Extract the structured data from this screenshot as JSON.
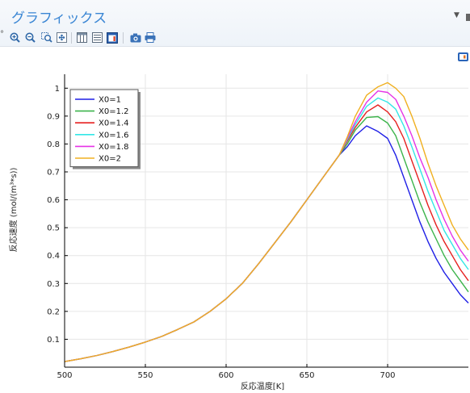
{
  "panel": {
    "title": "グラフィックス",
    "menu_arrow_icon": "dropdown-arrow-icon",
    "pin_icon": "pin-icon"
  },
  "toolbar": {
    "buttons": [
      {
        "name": "zoom-in-icon"
      },
      {
        "name": "zoom-out-icon"
      },
      {
        "name": "zoom-box-icon"
      },
      {
        "name": "zoom-extents-icon"
      },
      {
        "name": "table-icon"
      },
      {
        "name": "list-icon"
      },
      {
        "name": "plot-window-icon"
      },
      {
        "name": "camera-icon"
      },
      {
        "name": "print-icon"
      }
    ]
  },
  "chart_data": {
    "type": "line",
    "title": "",
    "xlabel": "反応温度[K]",
    "ylabel": "反応速度 (mol/(m³*s))",
    "xlim": [
      500,
      750
    ],
    "ylim": [
      0,
      1.05
    ],
    "xticks": [
      500,
      550,
      600,
      650,
      700
    ],
    "yticks": [
      0.1,
      0.2,
      0.3,
      0.4,
      0.5,
      0.6,
      0.7,
      0.8,
      0.9,
      1
    ],
    "grid": true,
    "legend_position": "top-left",
    "common_x": [
      500,
      510,
      520,
      530,
      540,
      550,
      560,
      570,
      580,
      590,
      600,
      610,
      620,
      630,
      640,
      650,
      660,
      670
    ],
    "common_y": [
      0.02,
      0.03,
      0.042,
      0.056,
      0.072,
      0.09,
      0.11,
      0.135,
      0.162,
      0.2,
      0.245,
      0.3,
      0.37,
      0.445,
      0.52,
      0.6,
      0.68,
      0.76
    ],
    "series": [
      {
        "name": "X0=1",
        "color": "#1f1fe6",
        "x": [
          675,
          680,
          687,
          694,
          700,
          705,
          710,
          715,
          720,
          725,
          730,
          735,
          740,
          745,
          750
        ],
        "y": [
          0.79,
          0.83,
          0.865,
          0.845,
          0.82,
          0.76,
          0.68,
          0.6,
          0.52,
          0.45,
          0.39,
          0.34,
          0.3,
          0.26,
          0.23
        ]
      },
      {
        "name": "X0=1.2",
        "color": "#3cb44b",
        "x": [
          675,
          680,
          687,
          694,
          700,
          705,
          710,
          715,
          720,
          725,
          730,
          735,
          740,
          745,
          750
        ],
        "y": [
          0.8,
          0.85,
          0.895,
          0.898,
          0.875,
          0.83,
          0.75,
          0.67,
          0.59,
          0.52,
          0.46,
          0.4,
          0.35,
          0.31,
          0.27
        ]
      },
      {
        "name": "X0=1.4",
        "color": "#e62020",
        "x": [
          675,
          680,
          687,
          694,
          700,
          705,
          710,
          715,
          720,
          725,
          730,
          735,
          740,
          745,
          750
        ],
        "y": [
          0.81,
          0.86,
          0.915,
          0.94,
          0.915,
          0.88,
          0.82,
          0.74,
          0.66,
          0.58,
          0.51,
          0.45,
          0.4,
          0.35,
          0.31
        ]
      },
      {
        "name": "X0=1.6",
        "color": "#33e6e6",
        "x": [
          675,
          680,
          687,
          694,
          700,
          705,
          710,
          715,
          720,
          725,
          730,
          735,
          740,
          745,
          750
        ],
        "y": [
          0.815,
          0.87,
          0.935,
          0.965,
          0.95,
          0.925,
          0.865,
          0.79,
          0.71,
          0.63,
          0.56,
          0.49,
          0.44,
          0.39,
          0.35
        ]
      },
      {
        "name": "X0=1.8",
        "color": "#e633e6",
        "x": [
          675,
          680,
          687,
          694,
          700,
          705,
          710,
          715,
          720,
          725,
          730,
          735,
          740,
          745,
          750
        ],
        "y": [
          0.82,
          0.88,
          0.95,
          0.99,
          0.985,
          0.96,
          0.9,
          0.83,
          0.75,
          0.68,
          0.6,
          0.53,
          0.47,
          0.42,
          0.38
        ]
      },
      {
        "name": "X0=2",
        "color": "#f0b020",
        "x": [
          675,
          680,
          687,
          694,
          700,
          705,
          710,
          715,
          720,
          725,
          730,
          735,
          740,
          745,
          750
        ],
        "y": [
          0.825,
          0.9,
          0.975,
          1.005,
          1.02,
          1.0,
          0.97,
          0.9,
          0.82,
          0.73,
          0.65,
          0.58,
          0.51,
          0.46,
          0.42
        ]
      }
    ]
  }
}
